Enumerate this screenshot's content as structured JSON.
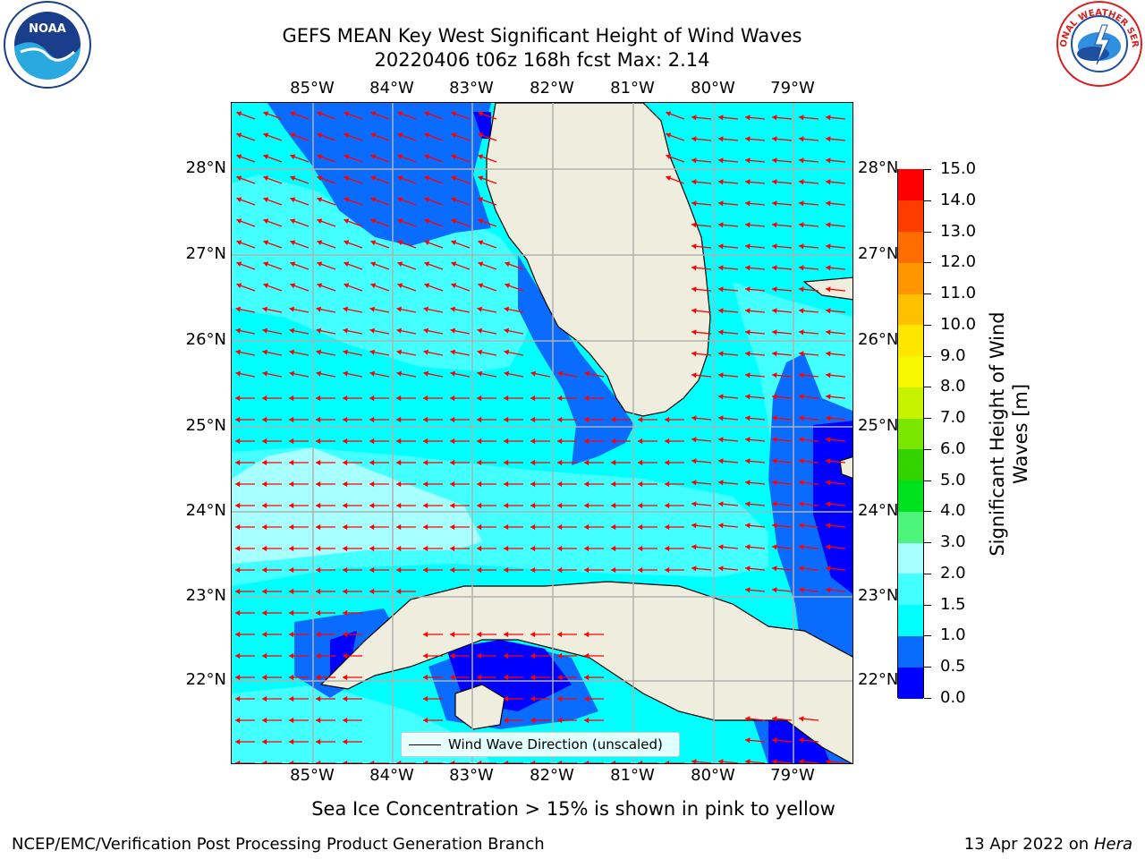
{
  "title_line1": "GEFS MEAN Key West Significant Height of Wind Waves",
  "title_line2": "20220406 t06z 168h fcst   Max: 2.14",
  "lon_ticks": [
    "85°W",
    "84°W",
    "83°W",
    "82°W",
    "81°W",
    "80°W",
    "79°W"
  ],
  "lat_ticks": [
    "28°N",
    "27°N",
    "26°N",
    "25°N",
    "24°N",
    "23°N",
    "22°N"
  ],
  "legend_label": "Wind Wave Direction (unscaled)",
  "colorbar": {
    "title_line1": "Significant Height of Wind",
    "title_line2": "Waves [m]",
    "ticks": [
      "0.0",
      "0.5",
      "1.0",
      "1.5",
      "2.0",
      "3.0",
      "4.0",
      "5.0",
      "6.0",
      "7.0",
      "8.0",
      "9.0",
      "10.0",
      "11.0",
      "12.0",
      "13.0",
      "14.0",
      "15.0"
    ],
    "colors": [
      "#0000ff",
      "#0a6cff",
      "#00ffff",
      "#43ffff",
      "#a8ffff",
      "#4cf57a",
      "#00e11e",
      "#33d300",
      "#7be600",
      "#c6f200",
      "#f7f700",
      "#ffe600",
      "#ffc000",
      "#ff9600",
      "#ff6c00",
      "#ff3c00",
      "#ff0000"
    ]
  },
  "ice_note": "Sea Ice Concentration > 15% is shown in pink to yellow",
  "footer_left": "NCEP/EMC/Verification Post Processing Product Generation Branch",
  "footer_right_prefix": "13 Apr 2022 on ",
  "footer_right_host": "Hera",
  "logos": {
    "noaa": "NOAA",
    "nws_text": "NATIONAL WEATHER SERVICE"
  },
  "colors": {
    "land": "#efedde",
    "grid": "#b0b0b0",
    "arrow": "#ff0000"
  }
}
